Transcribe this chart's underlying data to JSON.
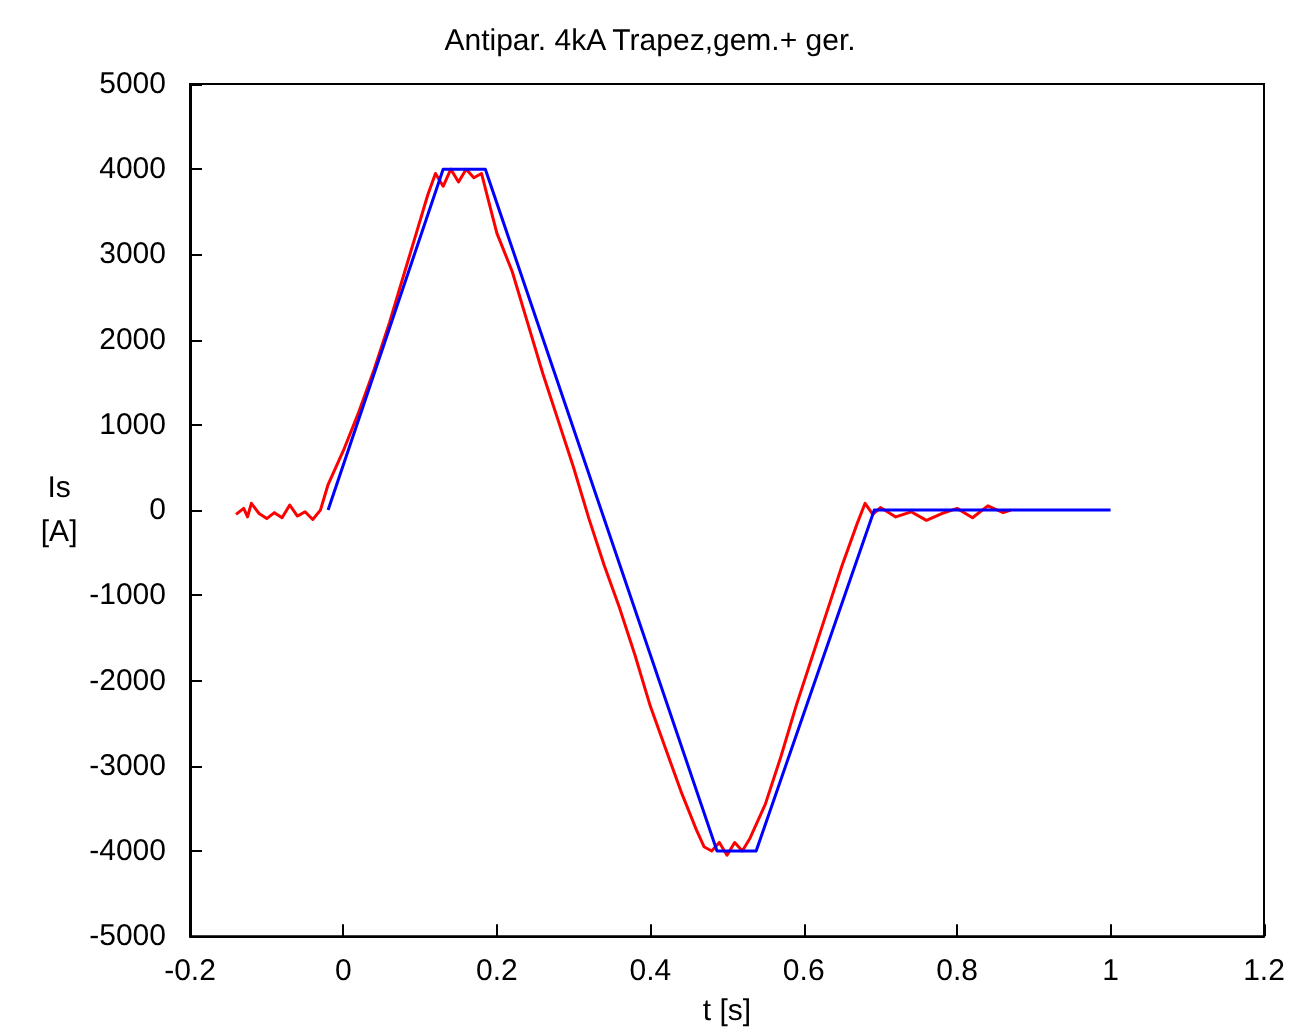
{
  "chart_data": {
    "type": "line",
    "title": "Antipar. 4kA Trapez,gem.+ ger.",
    "xlabel": "t [s]",
    "ylabel": "Is [A]",
    "xlim": [
      -0.2,
      1.2
    ],
    "xticks": [
      -0.2,
      0,
      0.2,
      0.4,
      0.6,
      0.8,
      1,
      1.2
    ],
    "ylim": [
      -5000,
      5000
    ],
    "yticks": [
      -5000,
      -4000,
      -3000,
      -2000,
      -1000,
      0,
      1000,
      2000,
      3000,
      4000,
      5000
    ],
    "grid": false,
    "marker": "none",
    "line_style": "solid",
    "series": [
      {
        "color": "#ff0000",
        "x": [
          -0.14,
          -0.13,
          -0.125,
          -0.12,
          -0.11,
          -0.1,
          -0.09,
          -0.08,
          -0.07,
          -0.06,
          -0.05,
          -0.04,
          -0.03,
          -0.02,
          0,
          0.02,
          0.04,
          0.06,
          0.08,
          0.1,
          0.11,
          0.12,
          0.13,
          0.14,
          0.15,
          0.16,
          0.17,
          0.18,
          0.19,
          0.2,
          0.22,
          0.24,
          0.26,
          0.28,
          0.3,
          0.32,
          0.34,
          0.36,
          0.38,
          0.4,
          0.42,
          0.44,
          0.46,
          0.47,
          0.48,
          0.49,
          0.5,
          0.51,
          0.52,
          0.53,
          0.55,
          0.57,
          0.59,
          0.61,
          0.63,
          0.65,
          0.67,
          0.68,
          0.69,
          0.7,
          0.72,
          0.74,
          0.76,
          0.78,
          0.8,
          0.82,
          0.84,
          0.86,
          0.87
        ],
        "values": [
          -50,
          20,
          -80,
          80,
          -40,
          -100,
          -30,
          -90,
          60,
          -70,
          -20,
          -110,
          0,
          300,
          700,
          1150,
          1650,
          2200,
          2800,
          3400,
          3700,
          3950,
          3800,
          4000,
          3850,
          4000,
          3900,
          3950,
          3600,
          3250,
          2800,
          2200,
          1600,
          1050,
          500,
          -100,
          -650,
          -1150,
          -1700,
          -2300,
          -2800,
          -3300,
          -3750,
          -3950,
          -4000,
          -3900,
          -4050,
          -3900,
          -4000,
          -3850,
          -3450,
          -2900,
          -2300,
          -1750,
          -1200,
          -650,
          -150,
          80,
          -50,
          30,
          -80,
          -20,
          -120,
          -40,
          20,
          -90,
          50,
          -30,
          0
        ]
      },
      {
        "color": "#0000ff",
        "x": [
          -0.02,
          0.13,
          0.185,
          0.487,
          0.538,
          0.692,
          1.0
        ],
        "values": [
          0,
          4000,
          4000,
          -4000,
          -4000,
          0,
          0
        ]
      }
    ]
  }
}
